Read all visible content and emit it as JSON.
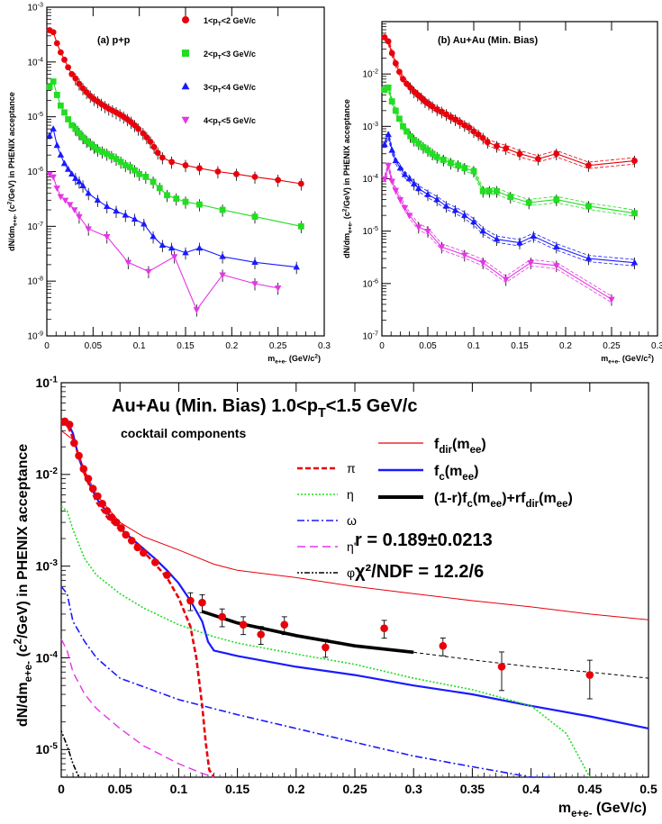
{
  "chart_data": [
    {
      "type": "scatter",
      "panel_label": "(a) p+p",
      "ylabel": "dN/dm_{e+e-} (c^2/GeV) in PHENIX acceptance",
      "xlabel": "m_{e+e-} (GeV/c^2)",
      "xlim": [
        0,
        0.3
      ],
      "ylim": [
        1e-09,
        0.001
      ],
      "yscale": "log",
      "x_ticks": [
        "0",
        "0.05",
        "0.1",
        "0.15",
        "0.2",
        "0.25",
        "0.3"
      ],
      "y_ticks": [
        "10^-9",
        "10^-8",
        "10^-7",
        "10^-6",
        "10^-5",
        "10^-4",
        "10^-3"
      ],
      "legend": [
        "1<p_T<2 GeV/c",
        "2<p_T<3 GeV/c",
        "3<p_T<4 GeV/c",
        "4<p_T<5 GeV/c"
      ],
      "series": [
        {
          "name": "1<p_T<2 GeV/c",
          "color": "#e8000b",
          "marker": "circle",
          "x": [
            0.003,
            0.007,
            0.011,
            0.015,
            0.019,
            0.023,
            0.027,
            0.031,
            0.035,
            0.039,
            0.043,
            0.047,
            0.051,
            0.055,
            0.059,
            0.063,
            0.067,
            0.071,
            0.075,
            0.079,
            0.083,
            0.087,
            0.091,
            0.095,
            0.099,
            0.104,
            0.108,
            0.112,
            0.116,
            0.12,
            0.125,
            0.135,
            0.15,
            0.165,
            0.185,
            0.205,
            0.225,
            0.25,
            0.275
          ],
          "y": [
            0.00038,
            0.00035,
            0.00022,
            0.00015,
            0.00011,
            8e-05,
            6e-05,
            5e-05,
            4e-05,
            3.3e-05,
            2.8e-05,
            2.4e-05,
            2.1e-05,
            1.9e-05,
            1.7e-05,
            1.55e-05,
            1.4e-05,
            1.3e-05,
            1.2e-05,
            1.1e-05,
            1e-05,
            9e-06,
            8e-06,
            7e-06,
            6e-06,
            5e-06,
            4.2e-06,
            3.5e-06,
            2.8e-06,
            2.2e-06,
            1.8e-06,
            1.5e-06,
            1.3e-06,
            1.15e-06,
            1e-06,
            9e-07,
            8e-07,
            7e-07,
            6e-07
          ]
        },
        {
          "name": "2<p_T<3 GeV/c",
          "color": "#22dd22",
          "marker": "square",
          "x": [
            0.003,
            0.007,
            0.011,
            0.015,
            0.019,
            0.023,
            0.027,
            0.031,
            0.035,
            0.039,
            0.043,
            0.047,
            0.051,
            0.055,
            0.06,
            0.065,
            0.07,
            0.075,
            0.08,
            0.085,
            0.09,
            0.095,
            0.1,
            0.107,
            0.115,
            0.122,
            0.13,
            0.14,
            0.15,
            0.165,
            0.19,
            0.225,
            0.275
          ],
          "y": [
            3.5e-05,
            4.4e-05,
            2.5e-05,
            1.6e-05,
            1.2e-05,
            9e-06,
            7e-06,
            6e-06,
            5e-06,
            4.2e-06,
            3.6e-06,
            3.2e-06,
            2.8e-06,
            2.5e-06,
            2.3e-06,
            2.1e-06,
            1.9e-06,
            1.7e-06,
            1.5e-06,
            1.3e-06,
            1.2e-06,
            1.05e-06,
            9e-07,
            8e-07,
            6.5e-07,
            5e-07,
            3.7e-07,
            3.2e-07,
            2.8e-07,
            2.5e-07,
            2e-07,
            1.5e-07,
            1e-07
          ]
        },
        {
          "name": "3<p_T<4 GeV/c",
          "color": "#1a1aff",
          "marker": "triangle",
          "x": [
            0.003,
            0.007,
            0.011,
            0.015,
            0.019,
            0.023,
            0.027,
            0.031,
            0.035,
            0.039,
            0.045,
            0.055,
            0.065,
            0.075,
            0.085,
            0.095,
            0.105,
            0.115,
            0.125,
            0.135,
            0.15,
            0.165,
            0.19,
            0.225,
            0.27
          ],
          "y": [
            4.5e-06,
            6e-06,
            3e-06,
            2e-06,
            1.4e-06,
            1.1e-06,
            9e-07,
            7.5e-07,
            6.5e-07,
            5.5e-07,
            4e-07,
            3e-07,
            2.3e-07,
            1.9e-07,
            1.6e-07,
            1.35e-07,
            1.1e-07,
            6.5e-08,
            4.5e-08,
            4e-08,
            3.3e-08,
            4e-08,
            2.8e-08,
            2.2e-08,
            1.8e-08
          ]
        },
        {
          "name": "4<p_T<5 GeV/c",
          "color": "#e635e6",
          "marker": "triangle-down",
          "x": [
            0.003,
            0.007,
            0.011,
            0.015,
            0.02,
            0.025,
            0.03,
            0.035,
            0.045,
            0.065,
            0.088,
            0.11,
            0.138,
            0.162,
            0.19,
            0.225,
            0.25
          ],
          "y": [
            9e-07,
            8e-07,
            5e-07,
            3.5e-07,
            3e-07,
            2.5e-07,
            2e-07,
            1.5e-07,
            9e-08,
            6.5e-08,
            2.2e-08,
            1.5e-08,
            2.8e-08,
            3e-09,
            1.3e-08,
            9e-09,
            7.5e-09
          ]
        }
      ]
    },
    {
      "type": "scatter",
      "panel_label": "(b) Au+Au (Min. Bias)",
      "ylabel": "dN/dm_{e+e-} (c^2/GeV) in PHENIX acceptance",
      "xlabel": "m_{e+e-} (GeV/c^2)",
      "xlim": [
        0,
        0.3
      ],
      "ylim": [
        1e-07,
        0.1
      ],
      "yscale": "log",
      "x_ticks": [
        "0",
        "0.05",
        "0.1",
        "0.15",
        "0.2",
        "0.25",
        "0.3"
      ],
      "y_ticks": [
        "10^-7",
        "10^-6",
        "10^-5",
        "10^-4",
        "10^-3",
        "10^-2"
      ],
      "series": [
        {
          "name": "1<p_T<2 GeV/c",
          "color": "#e8000b",
          "marker": "circle",
          "x": [
            0.003,
            0.007,
            0.011,
            0.015,
            0.019,
            0.023,
            0.027,
            0.031,
            0.035,
            0.039,
            0.043,
            0.047,
            0.051,
            0.055,
            0.06,
            0.065,
            0.07,
            0.075,
            0.08,
            0.085,
            0.09,
            0.095,
            0.1,
            0.105,
            0.11,
            0.115,
            0.125,
            0.135,
            0.15,
            0.17,
            0.19,
            0.225,
            0.275
          ],
          "y": [
            0.05,
            0.042,
            0.025,
            0.016,
            0.011,
            0.008,
            0.0065,
            0.0055,
            0.0046,
            0.004,
            0.0035,
            0.003,
            0.0027,
            0.0024,
            0.0021,
            0.0019,
            0.0017,
            0.0015,
            0.00135,
            0.0012,
            0.00105,
            0.00095,
            0.0008,
            0.0007,
            0.0006,
            0.0005,
            0.00042,
            0.00038,
            0.0003,
            0.00024,
            0.0003,
            0.00018,
            0.00022
          ]
        },
        {
          "name": "2<p_T<3 GeV/c",
          "color": "#22dd22",
          "marker": "square",
          "x": [
            0.003,
            0.007,
            0.011,
            0.015,
            0.019,
            0.023,
            0.027,
            0.031,
            0.035,
            0.04,
            0.045,
            0.05,
            0.055,
            0.06,
            0.067,
            0.075,
            0.083,
            0.09,
            0.1,
            0.11,
            0.117,
            0.125,
            0.14,
            0.16,
            0.19,
            0.225,
            0.275
          ],
          "y": [
            0.005,
            0.0055,
            0.003,
            0.002,
            0.0014,
            0.001,
            0.0008,
            0.00065,
            0.00055,
            0.00047,
            0.0004,
            0.00035,
            0.0003,
            0.00026,
            0.00023,
            0.0002,
            0.00018,
            0.00016,
            0.00014,
            5.8e-05,
            5.8e-05,
            5.8e-05,
            4.5e-05,
            3.5e-05,
            4e-05,
            3e-05,
            2.2e-05
          ]
        },
        {
          "name": "3<p_T<4 GeV/c",
          "color": "#1a1aff",
          "marker": "triangle",
          "x": [
            0.003,
            0.007,
            0.011,
            0.015,
            0.02,
            0.025,
            0.03,
            0.035,
            0.04,
            0.05,
            0.06,
            0.07,
            0.08,
            0.09,
            0.1,
            0.11,
            0.125,
            0.15,
            0.165,
            0.19,
            0.225,
            0.275
          ],
          "y": [
            0.00045,
            0.0007,
            0.00035,
            0.00022,
            0.00016,
            0.00012,
            0.0001,
            8e-05,
            6.5e-05,
            5e-05,
            4e-05,
            3e-05,
            2.5e-05,
            2e-05,
            1.5e-05,
            1e-05,
            7e-06,
            6e-06,
            8e-06,
            5e-06,
            3e-06,
            2.5e-06
          ]
        },
        {
          "name": "4<p_T<5 GeV/c",
          "color": "#e635e6",
          "marker": "triangle-down",
          "x": [
            0.003,
            0.007,
            0.011,
            0.015,
            0.02,
            0.025,
            0.03,
            0.04,
            0.05,
            0.065,
            0.09,
            0.11,
            0.135,
            0.162,
            0.19,
            0.25
          ],
          "y": [
            0.0001,
            0.00018,
            9e-05,
            6e-05,
            4e-05,
            2.8e-05,
            2e-05,
            1.2e-05,
            1e-05,
            5e-06,
            3.5e-06,
            2.5e-06,
            1.2e-06,
            2.5e-06,
            2.2e-06,
            5e-07
          ]
        }
      ]
    },
    {
      "type": "line",
      "title": "Au+Au (Min. Bias) 1.0<p_T<1.5 GeV/c",
      "ylabel": "dN/dm_{e+e-} (c^2/GeV) in PHENIX acceptance",
      "xlabel": "m_{e+e-} (GeV/c)",
      "xlim": [
        0,
        0.5
      ],
      "ylim": [
        5e-06,
        0.1
      ],
      "yscale": "log",
      "x_ticks": [
        "0",
        "0.05",
        "0.1",
        "0.15",
        "0.2",
        "0.25",
        "0.3",
        "0.35",
        "0.4",
        "0.45",
        "0.5"
      ],
      "y_ticks": [
        "10^-5",
        "10^-4",
        "10^-3",
        "10^-2",
        "10^-1"
      ],
      "cocktail_label": "cocktail components",
      "fit_result": "r = 0.189±0.0213",
      "chi2": "χ²/NDF = 12.2/6",
      "legend_cocktail": [
        "π",
        "η",
        "ω",
        "η'",
        "φ"
      ],
      "legend_fits": [
        "f_dir(m_ee)",
        "f_c(m_ee)",
        "(1-r)f_c(m_ee)+rf_dir(m_ee)"
      ],
      "data_points": {
        "x": [
          0.003,
          0.007,
          0.011,
          0.015,
          0.019,
          0.023,
          0.027,
          0.031,
          0.035,
          0.039,
          0.043,
          0.047,
          0.051,
          0.055,
          0.06,
          0.065,
          0.07,
          0.08,
          0.09,
          0.11,
          0.12,
          0.137,
          0.155,
          0.17,
          0.19,
          0.225,
          0.275,
          0.325,
          0.375,
          0.45
        ],
        "y": [
          0.038,
          0.035,
          0.022,
          0.016,
          0.0115,
          0.009,
          0.007,
          0.0058,
          0.0048,
          0.004,
          0.0034,
          0.003,
          0.0026,
          0.0022,
          0.0019,
          0.0016,
          0.0014,
          0.0011,
          0.0008,
          0.00042,
          0.0004,
          0.00028,
          0.00023,
          0.00018,
          0.00023,
          0.00013,
          0.00021,
          0.000135,
          8e-05,
          6.5e-05
        ]
      },
      "series": [
        {
          "name": "f_dir(m_ee)",
          "color": "#e8000b",
          "x": [
            0,
            0.01,
            0.02,
            0.03,
            0.05,
            0.07,
            0.1,
            0.13,
            0.15,
            0.2,
            0.25,
            0.3,
            0.35,
            0.4,
            0.45,
            0.5
          ],
          "y": [
            0.03,
            0.024,
            0.011,
            0.006,
            0.003,
            0.0021,
            0.0015,
            0.00105,
            0.0009,
            0.00075,
            0.0006,
            0.0005,
            0.00042,
            0.00036,
            0.0003,
            0.00026
          ]
        },
        {
          "name": "f_c(m_ee)",
          "color": "#1a1aff",
          "x": [
            0,
            0.005,
            0.01,
            0.015,
            0.02,
            0.03,
            0.04,
            0.05,
            0.06,
            0.07,
            0.08,
            0.09,
            0.1,
            0.11,
            0.12,
            0.125,
            0.13,
            0.15,
            0.2,
            0.25,
            0.3,
            0.35,
            0.4,
            0.45,
            0.5
          ],
          "y": [
            0.035,
            0.038,
            0.028,
            0.015,
            0.01,
            0.0055,
            0.0037,
            0.0026,
            0.002,
            0.00155,
            0.0012,
            0.0009,
            0.00065,
            0.00042,
            0.00025,
            0.00015,
            0.00012,
            0.000105,
            8e-05,
            6.5e-05,
            5e-05,
            4e-05,
            3e-05,
            2.3e-05,
            1.7e-05
          ]
        },
        {
          "name": "(1-r)f_c(m_ee)+rf_dir(m_ee)",
          "color": "#000000",
          "x": [
            0.12,
            0.15,
            0.2,
            0.25,
            0.3
          ],
          "y": [
            0.00032,
            0.00024,
            0.000175,
            0.000135,
            0.000115
          ]
        },
        {
          "name": "(1-r)f_c(m_ee)+rf_dir(m_ee) ext",
          "color": "#000000",
          "x": [
            0.3,
            0.35,
            0.4,
            0.45,
            0.5
          ],
          "y": [
            0.000115,
            9.5e-05,
            8e-05,
            7e-05,
            6e-05
          ]
        },
        {
          "name": "π",
          "color": "#e8000b",
          "x": [
            0,
            0.005,
            0.01,
            0.02,
            0.03,
            0.04,
            0.05,
            0.06,
            0.07,
            0.08,
            0.09,
            0.1,
            0.11,
            0.115,
            0.12,
            0.123,
            0.126,
            0.13
          ],
          "y": [
            0.035,
            0.035,
            0.025,
            0.01,
            0.005,
            0.0033,
            0.0025,
            0.0019,
            0.00145,
            0.00105,
            0.00075,
            0.00045,
            0.00022,
            0.0001,
            3e-05,
            1.2e-05,
            6e-06,
            5e-06
          ]
        },
        {
          "name": "η",
          "color": "#22dd22",
          "x": [
            0,
            0.005,
            0.01,
            0.02,
            0.03,
            0.05,
            0.07,
            0.1,
            0.13,
            0.15,
            0.2,
            0.25,
            0.3,
            0.35,
            0.4,
            0.43,
            0.45
          ],
          "y": [
            0.0045,
            0.004,
            0.0025,
            0.0012,
            0.0008,
            0.0005,
            0.00035,
            0.00023,
            0.00017,
            0.000145,
            0.00011,
            8.5e-05,
            6e-05,
            4.5e-05,
            3e-05,
            1.5e-05,
            5e-06
          ]
        },
        {
          "name": "ω",
          "color": "#1a1aff",
          "x": [
            0,
            0.005,
            0.01,
            0.02,
            0.03,
            0.05,
            0.1,
            0.15,
            0.2,
            0.25,
            0.3,
            0.35,
            0.4,
            0.42
          ],
          "y": [
            0.0006,
            0.0005,
            0.00025,
            0.00015,
            0.0001,
            6e-05,
            3.5e-05,
            2.4e-05,
            1.7e-05,
            1.2e-05,
            8.5e-06,
            6.5e-06,
            5e-06,
            5e-06
          ]
        },
        {
          "name": "η'",
          "color": "#e635e6",
          "x": [
            0,
            0.005,
            0.01,
            0.02,
            0.03,
            0.05,
            0.07,
            0.1,
            0.12,
            0.13
          ],
          "y": [
            0.00016,
            0.00012,
            7e-05,
            4e-05,
            2.8e-05,
            1.7e-05,
            1.1e-05,
            7e-06,
            5.5e-06,
            5e-06
          ]
        },
        {
          "name": "φ",
          "color": "#000000",
          "x": [
            0,
            0.005,
            0.01,
            0.015
          ],
          "y": [
            1.6e-05,
            1.1e-05,
            7e-06,
            5e-06
          ]
        }
      ]
    }
  ]
}
